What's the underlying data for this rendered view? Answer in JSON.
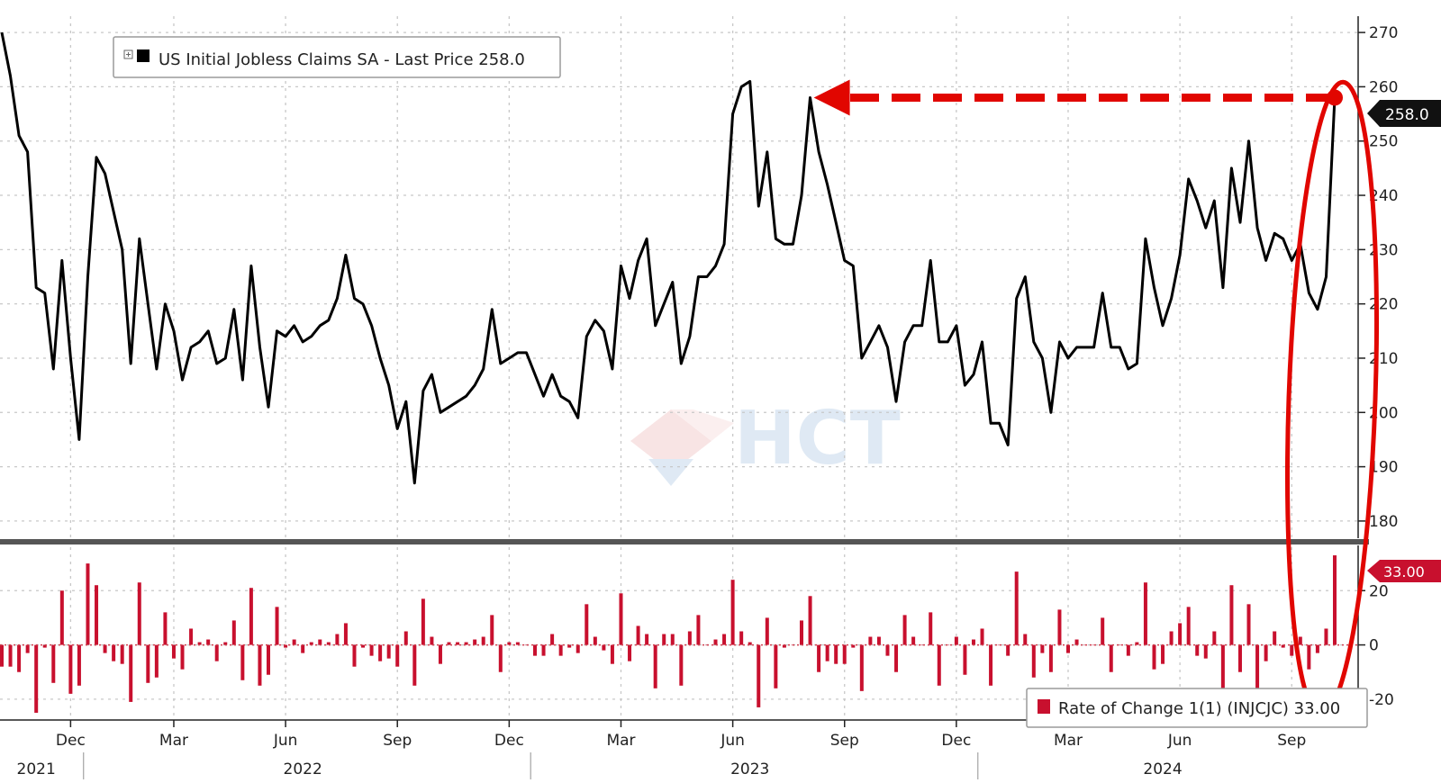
{
  "chart_data": [
    {
      "type": "line",
      "panel": "top",
      "legend": "US Initial Jobless Claims SA - Last Price 258.0",
      "legend_placement": "top-left",
      "last_value_label": "258.0",
      "ylim": [
        177,
        273
      ],
      "yticks": [
        180,
        190,
        200,
        210,
        220,
        230,
        240,
        250,
        260,
        270
      ],
      "ytick_labels": [
        "180",
        "190",
        "200",
        "210",
        "220",
        "230",
        "240",
        "250",
        "260",
        "270"
      ],
      "grid": true,
      "color": "#000000",
      "series": [
        {
          "values": [
            270,
            262,
            251,
            248,
            223,
            222,
            208,
            228,
            210,
            195,
            225,
            247,
            244,
            237,
            230,
            209,
            232,
            220,
            208,
            220,
            215,
            206,
            212,
            213,
            215,
            209,
            210,
            219,
            206,
            227,
            212,
            201,
            215,
            214,
            216,
            213,
            214,
            216,
            217,
            221,
            229,
            221,
            220,
            216,
            210,
            205,
            197,
            202,
            187,
            204,
            207,
            200,
            201,
            202,
            203,
            205,
            208,
            219,
            209,
            210,
            211,
            211,
            207,
            203,
            207,
            203,
            202,
            199,
            214,
            217,
            215,
            208,
            227,
            221,
            228,
            232,
            216,
            220,
            224,
            209,
            214,
            225,
            225,
            227,
            231,
            255,
            260,
            261,
            238,
            248,
            232,
            231,
            231,
            240,
            258,
            248,
            242,
            235,
            228,
            227,
            210,
            213,
            216,
            212,
            202,
            213,
            216,
            216,
            228,
            213,
            213,
            216,
            205,
            207,
            213,
            198,
            198,
            194,
            221,
            225,
            213,
            210,
            200,
            213,
            210,
            212,
            212,
            212,
            222,
            212,
            212,
            208,
            209,
            232,
            223,
            216,
            221,
            229,
            243,
            239,
            234,
            239,
            223,
            245,
            235,
            250,
            234,
            228,
            233,
            232,
            228,
            231,
            222,
            219,
            225,
            258
          ]
        }
      ]
    },
    {
      "type": "bar",
      "panel": "bottom",
      "legend": "Rate of Change 1(1) (INJCJC) 33.00",
      "legend_placement": "bottom-right",
      "last_value_label": "33.00",
      "ylim": [
        -27,
        36
      ],
      "yticks": [
        -20,
        0,
        20
      ],
      "ytick_labels": [
        "-20",
        "0",
        "20"
      ],
      "color": "#c8102e",
      "series": [
        {
          "values": [
            -8,
            -8,
            -10,
            -3,
            -25,
            -1,
            -14,
            20,
            -18,
            -15,
            30,
            22,
            -3,
            -6,
            -7,
            -21,
            23,
            -14,
            -12,
            12,
            -5,
            -9,
            6,
            1,
            2,
            -6,
            1,
            9,
            -13,
            21,
            -15,
            -11,
            14,
            -1,
            2,
            -3,
            1,
            2,
            1,
            4,
            8,
            -8,
            -1,
            -4,
            -6,
            -5,
            -8,
            5,
            -15,
            17,
            3,
            -7,
            1,
            1,
            1,
            2,
            3,
            11,
            -10,
            1,
            1,
            0,
            -4,
            -4,
            4,
            -4,
            -1,
            -3,
            15,
            3,
            -2,
            -7,
            19,
            -6,
            7,
            4,
            -16,
            4,
            4,
            -15,
            5,
            11,
            0,
            2,
            4,
            24,
            5,
            1,
            -23,
            10,
            -16,
            -1,
            0,
            9,
            18,
            -10,
            -6,
            -7,
            -7,
            -1,
            -17,
            3,
            3,
            -4,
            -10,
            11,
            3,
            0,
            12,
            -15,
            0,
            3,
            -11,
            2,
            6,
            -15,
            0,
            -4,
            27,
            4,
            -12,
            -3,
            -10,
            13,
            -3,
            2,
            0,
            0,
            10,
            -10,
            0,
            -4,
            1,
            23,
            -9,
            -7,
            5,
            8,
            14,
            -4,
            -5,
            5,
            -16,
            22,
            -10,
            15,
            -16,
            -6,
            5,
            -1,
            -4,
            3,
            -9,
            -3,
            6,
            33
          ]
        }
      ]
    }
  ],
  "x_axis": {
    "months": [
      {
        "label": "Dec",
        "index": 8
      },
      {
        "label": "Mar",
        "index": 20
      },
      {
        "label": "Jun",
        "index": 33
      },
      {
        "label": "Sep",
        "index": 46
      },
      {
        "label": "Dec",
        "index": 59
      },
      {
        "label": "Mar",
        "index": 72
      },
      {
        "label": "Jun",
        "index": 85
      },
      {
        "label": "Sep",
        "index": 98
      },
      {
        "label": "Dec",
        "index": 111
      },
      {
        "label": "Mar",
        "index": 124
      },
      {
        "label": "Jun",
        "index": 137
      },
      {
        "label": "Sep",
        "index": 150
      }
    ],
    "years": [
      {
        "label": "2021",
        "index": 4
      },
      {
        "label": "2022",
        "index": 35
      },
      {
        "label": "2023",
        "index": 87
      },
      {
        "label": "2024",
        "index": 135
      }
    ],
    "year_boundaries": [
      9.5,
      61.5,
      113.5
    ]
  },
  "watermark": "HCT",
  "annotation": {
    "arrow_color": "#e10600",
    "from_index": 155,
    "to_index": 94,
    "value": 258,
    "ellipse_color": "#e10600"
  }
}
